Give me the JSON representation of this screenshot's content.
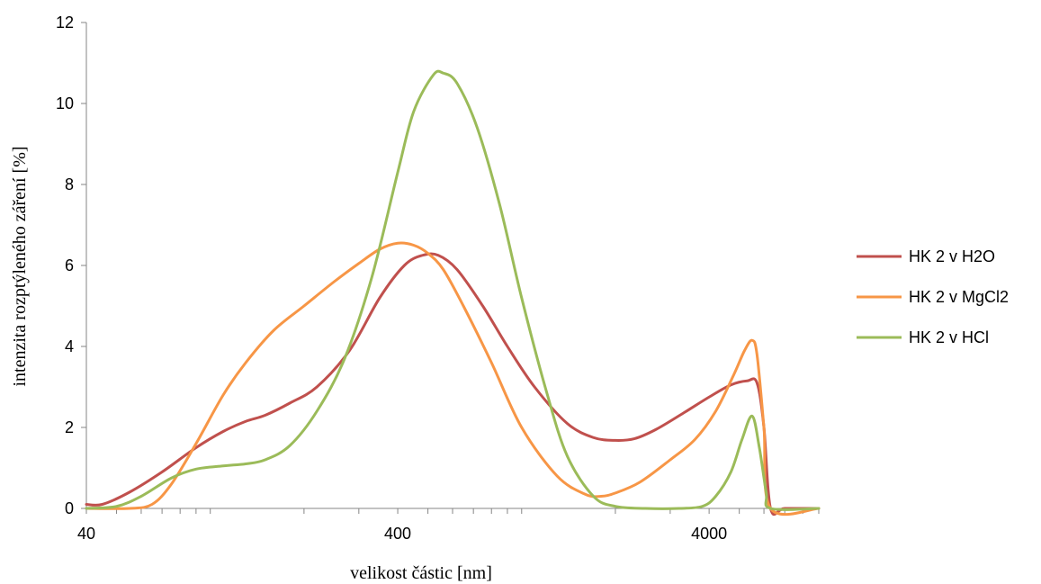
{
  "chart_data": {
    "type": "line",
    "title": "",
    "xlabel": "velikost částic [nm]",
    "ylabel": "intenzita rozptýleného záření [%]",
    "xscale": "log",
    "xlim": [
      40,
      9000
    ],
    "ylim": [
      0,
      12
    ],
    "xticks": [
      40,
      400,
      4000
    ],
    "yticks": [
      0,
      2,
      4,
      6,
      8,
      10,
      12
    ],
    "grid": false,
    "legend_position": "right",
    "series": [
      {
        "name": "HK 2 v H2O",
        "color": "#c0504d",
        "points": [
          [
            40,
            0.1
          ],
          [
            45,
            0.1
          ],
          [
            55,
            0.4
          ],
          [
            70,
            0.9
          ],
          [
            90,
            1.5
          ],
          [
            110,
            1.9
          ],
          [
            130,
            2.15
          ],
          [
            150,
            2.3
          ],
          [
            180,
            2.6
          ],
          [
            220,
            3.0
          ],
          [
            280,
            3.9
          ],
          [
            350,
            5.2
          ],
          [
            420,
            6.0
          ],
          [
            480,
            6.25
          ],
          [
            540,
            6.25
          ],
          [
            620,
            5.9
          ],
          [
            750,
            5.0
          ],
          [
            900,
            4.0
          ],
          [
            1100,
            3.0
          ],
          [
            1400,
            2.1
          ],
          [
            1700,
            1.75
          ],
          [
            2000,
            1.68
          ],
          [
            2300,
            1.72
          ],
          [
            2700,
            1.95
          ],
          [
            3300,
            2.35
          ],
          [
            4000,
            2.75
          ],
          [
            4700,
            3.05
          ],
          [
            5300,
            3.15
          ],
          [
            5700,
            3.1
          ],
          [
            6000,
            2.0
          ],
          [
            6300,
            0.0
          ],
          [
            7000,
            0.0
          ],
          [
            9000,
            0.0
          ]
        ]
      },
      {
        "name": "HK 2 v MgCl2",
        "color": "#f79646",
        "points": [
          [
            40,
            0.0
          ],
          [
            55,
            0.0
          ],
          [
            65,
            0.1
          ],
          [
            75,
            0.6
          ],
          [
            90,
            1.6
          ],
          [
            110,
            2.8
          ],
          [
            130,
            3.6
          ],
          [
            160,
            4.4
          ],
          [
            200,
            5.0
          ],
          [
            250,
            5.6
          ],
          [
            300,
            6.05
          ],
          [
            350,
            6.4
          ],
          [
            400,
            6.55
          ],
          [
            450,
            6.5
          ],
          [
            500,
            6.3
          ],
          [
            560,
            5.9
          ],
          [
            650,
            5.0
          ],
          [
            800,
            3.6
          ],
          [
            1000,
            2.0
          ],
          [
            1300,
            0.8
          ],
          [
            1600,
            0.35
          ],
          [
            1800,
            0.3
          ],
          [
            2000,
            0.38
          ],
          [
            2400,
            0.65
          ],
          [
            3000,
            1.2
          ],
          [
            3600,
            1.7
          ],
          [
            4200,
            2.4
          ],
          [
            4800,
            3.3
          ],
          [
            5200,
            3.9
          ],
          [
            5500,
            4.15
          ],
          [
            5700,
            3.8
          ],
          [
            6000,
            2.0
          ],
          [
            6300,
            0.0
          ],
          [
            9000,
            0.0
          ]
        ]
      },
      {
        "name": "HK 2 v HCl",
        "color": "#9bbb59",
        "points": [
          [
            40,
            0.0
          ],
          [
            50,
            0.05
          ],
          [
            60,
            0.3
          ],
          [
            75,
            0.75
          ],
          [
            90,
            0.97
          ],
          [
            110,
            1.05
          ],
          [
            130,
            1.1
          ],
          [
            150,
            1.2
          ],
          [
            180,
            1.55
          ],
          [
            220,
            2.4
          ],
          [
            270,
            3.7
          ],
          [
            330,
            5.7
          ],
          [
            400,
            8.3
          ],
          [
            450,
            9.8
          ],
          [
            520,
            10.7
          ],
          [
            560,
            10.75
          ],
          [
            620,
            10.5
          ],
          [
            720,
            9.4
          ],
          [
            850,
            7.5
          ],
          [
            1000,
            5.2
          ],
          [
            1200,
            2.9
          ],
          [
            1400,
            1.3
          ],
          [
            1700,
            0.3
          ],
          [
            2000,
            0.05
          ],
          [
            2500,
            0.0
          ],
          [
            3200,
            0.0
          ],
          [
            3800,
            0.05
          ],
          [
            4200,
            0.3
          ],
          [
            4700,
            0.9
          ],
          [
            5100,
            1.7
          ],
          [
            5500,
            2.28
          ],
          [
            5800,
            1.5
          ],
          [
            6100,
            0.4
          ],
          [
            6300,
            0.0
          ],
          [
            9000,
            0.0
          ]
        ]
      }
    ]
  }
}
